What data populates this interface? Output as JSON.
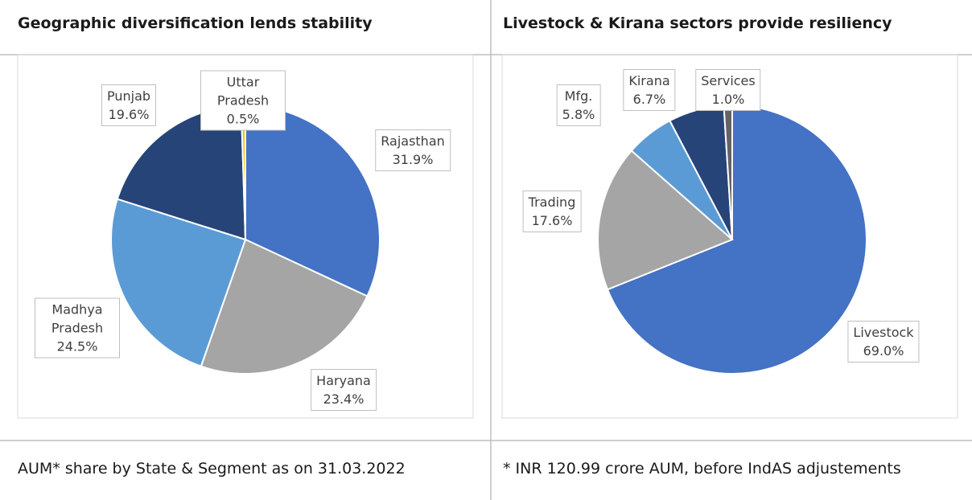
{
  "table": {
    "headers": [
      "Geographic diversification lends stability",
      "Livestock & Kirana sectors provide resiliency"
    ],
    "footers": [
      "AUM* share by State & Segment as on 31.03.2022",
      "* INR 120.99 crore AUM, before IndAS adjustements"
    ]
  },
  "chart_data": [
    {
      "type": "pie",
      "categories": [
        "Rajasthan",
        "Haryana",
        "Madhya Pradesh",
        "Punjab",
        "Uttar Pradesh"
      ],
      "values": [
        31.9,
        23.4,
        24.5,
        19.6,
        0.5
      ],
      "value_labels": [
        "31.9%",
        "23.4%",
        "24.5%",
        "19.6%",
        "0.5%"
      ],
      "colors": [
        "#4472c4",
        "#a5a5a5",
        "#5b9bd5",
        "#264478",
        "#ffc000"
      ]
    },
    {
      "type": "pie",
      "categories": [
        "Livestock",
        "Trading",
        "Mfg.",
        "Kirana",
        "Services"
      ],
      "values": [
        69.0,
        17.6,
        5.8,
        6.7,
        1.0
      ],
      "value_labels": [
        "69.0%",
        "17.6%",
        "5.8%",
        "6.7%",
        "1.0%"
      ],
      "colors": [
        "#4472c4",
        "#a5a5a5",
        "#5b9bd5",
        "#264478",
        "#636363"
      ]
    }
  ]
}
